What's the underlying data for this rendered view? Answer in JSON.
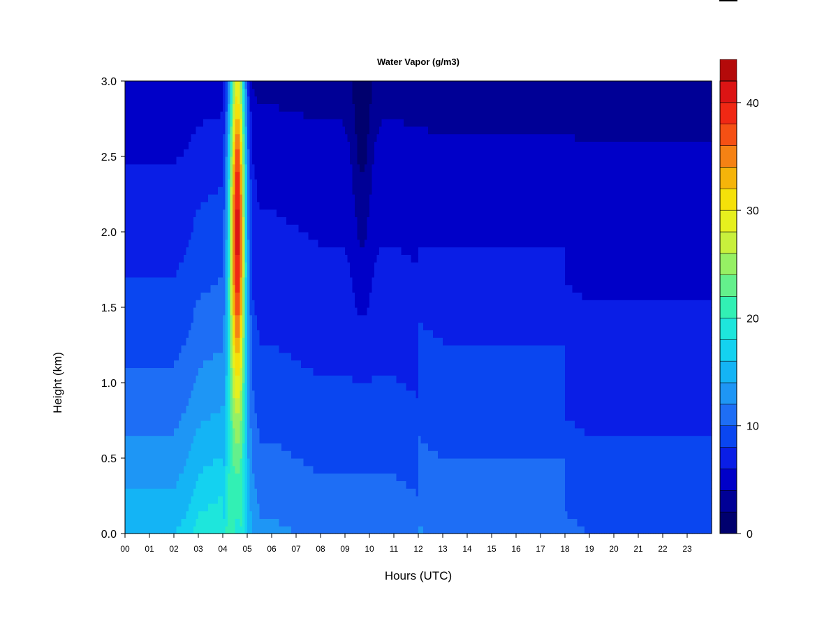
{
  "chart_data": {
    "type": "heatmap",
    "title": "Water Vapor (g/m3)",
    "xlabel": "Hours (UTC)",
    "ylabel": "Height (km)",
    "xlim": [
      0,
      24
    ],
    "ylim": [
      0,
      3.0
    ],
    "x_ticks": [
      "00",
      "01",
      "02",
      "03",
      "04",
      "05",
      "06",
      "07",
      "08",
      "09",
      "10",
      "11",
      "12",
      "13",
      "14",
      "15",
      "16",
      "17",
      "18",
      "19",
      "20",
      "21",
      "22",
      "23"
    ],
    "y_ticks": [
      "0.0",
      "0.5",
      "1.0",
      "1.5",
      "2.0",
      "2.5",
      "3.0"
    ],
    "colorbar": {
      "range": [
        0,
        42
      ],
      "step": 2,
      "tick_labels": [
        "0",
        "10",
        "20",
        "30",
        "40"
      ],
      "colors": [
        "#00006e",
        "#000096",
        "#0000c8",
        "#0a1ee6",
        "#0a46f0",
        "#1e6ef5",
        "#1e96f5",
        "#14b4f5",
        "#14d2f0",
        "#1ee6dc",
        "#32f0b4",
        "#64f08c",
        "#96f064",
        "#c8f03c",
        "#e6f01e",
        "#f5e10a",
        "#f5b40a",
        "#f58214",
        "#f55014",
        "#f02814",
        "#dc1414",
        "#b40a0a",
        "#820000"
      ]
    },
    "grid": false,
    "field": {
      "description_hint": "height-time contour of water vapor density",
      "surface_profile": [
        {
          "x": 0.0,
          "v": 12
        },
        {
          "x": 1.0,
          "v": 12
        },
        {
          "x": 2.0,
          "v": 12
        },
        {
          "x": 2.5,
          "v": 13
        },
        {
          "x": 3.0,
          "v": 15
        },
        {
          "x": 4.0,
          "v": 16
        },
        {
          "x": 4.3,
          "v": 22
        },
        {
          "x": 4.6,
          "v": 24
        },
        {
          "x": 5.0,
          "v": 14
        },
        {
          "x": 5.5,
          "v": 11
        },
        {
          "x": 6.0,
          "v": 11
        },
        {
          "x": 7.0,
          "v": 10.5
        },
        {
          "x": 8.0,
          "v": 10
        },
        {
          "x": 9.0,
          "v": 10
        },
        {
          "x": 10.0,
          "v": 10
        },
        {
          "x": 11.0,
          "v": 10
        },
        {
          "x": 12.0,
          "v": 9.5
        },
        {
          "x": 13.0,
          "v": 9
        },
        {
          "x": 14.0,
          "v": 9
        },
        {
          "x": 15.0,
          "v": 9
        },
        {
          "x": 16.0,
          "v": 9
        },
        {
          "x": 17.0,
          "v": 9
        },
        {
          "x": 18.0,
          "v": 9
        },
        {
          "x": 19.0,
          "v": 8.5
        },
        {
          "x": 20.0,
          "v": 8.5
        },
        {
          "x": 21.0,
          "v": 8.5
        },
        {
          "x": 22.0,
          "v": 8.5
        },
        {
          "x": 23.0,
          "v": 8.5
        },
        {
          "x": 24.0,
          "v": 8.5
        }
      ],
      "plume": {
        "x_center": 4.6,
        "x_halfwidth": 0.4,
        "max_value": 41,
        "max_height_km": 2.0
      },
      "dry_tongue": {
        "x_center": 9.7,
        "x_halfwidth": 0.4,
        "min_value": 3,
        "bottom_km": 1.0
      }
    }
  }
}
